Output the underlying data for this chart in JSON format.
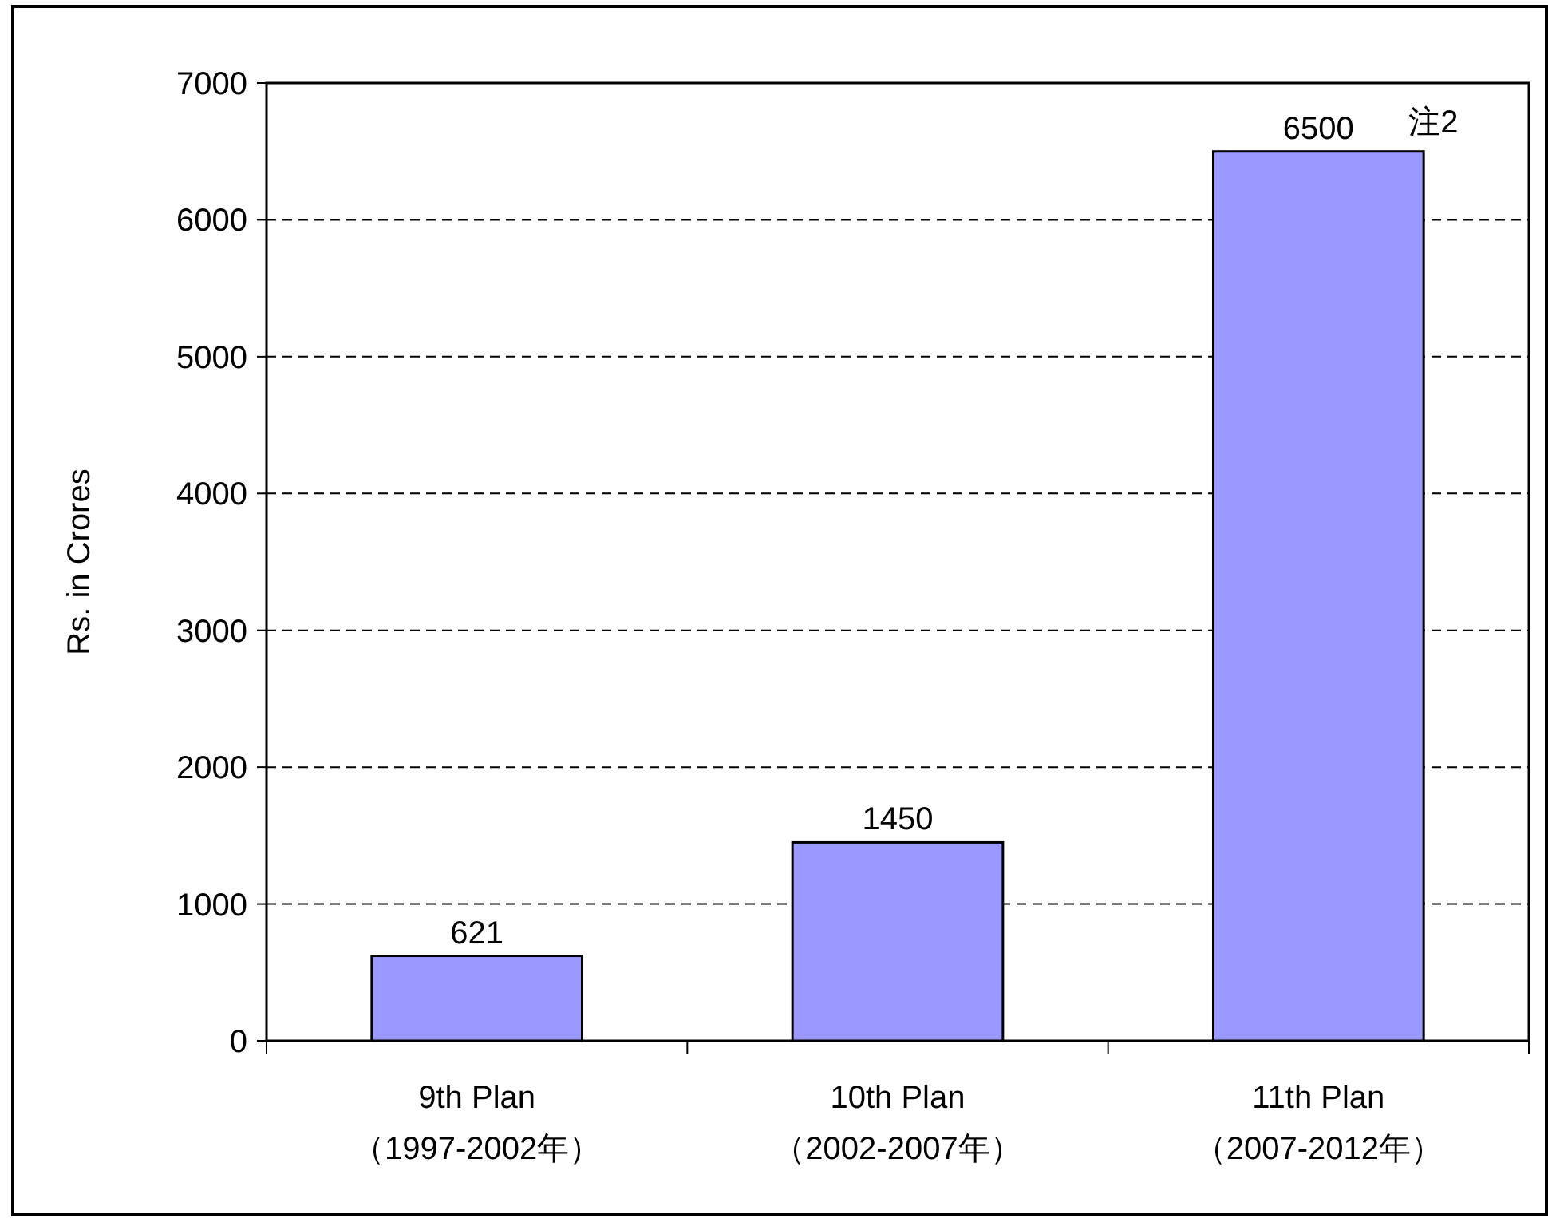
{
  "chart_data": {
    "type": "bar",
    "ylabel": "Rs. in Crores",
    "categories": [
      "9th Plan\n（1997-2002年）",
      "10th Plan\n（2002-2007年）",
      "11th Plan\n（2007-2012年）"
    ],
    "values": [
      621,
      1450,
      6500
    ],
    "color": "#9999ff",
    "ylim": [
      0,
      7000
    ],
    "yticks": [
      0,
      1000,
      2000,
      3000,
      4000,
      5000,
      6000,
      7000
    ],
    "grid": "y",
    "data_labels": true,
    "annotations": [
      {
        "text": "注2",
        "x": "11th Plan\n（2007-2012年）",
        "y": 6500
      }
    ]
  }
}
